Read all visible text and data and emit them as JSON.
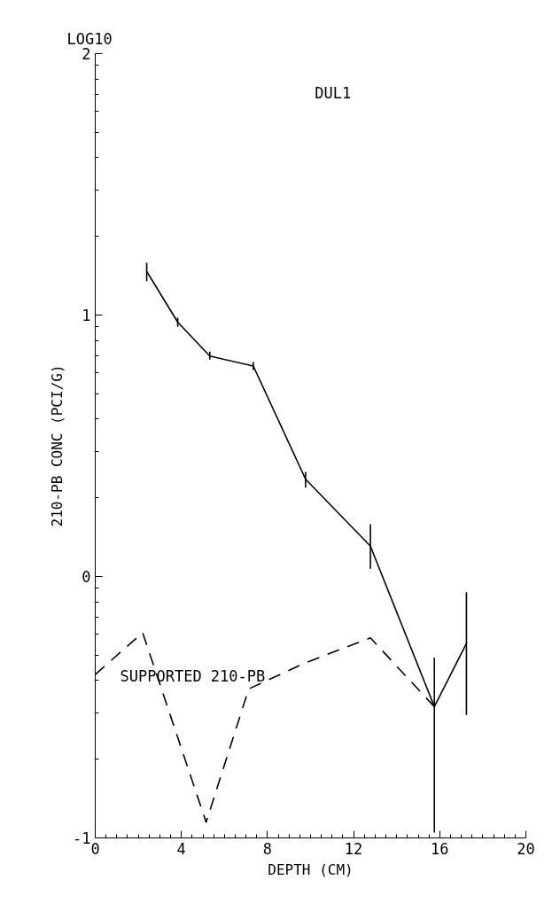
{
  "chart_data": {
    "type": "line",
    "title": "DUL1",
    "xlabel": "DEPTH (CM)",
    "ylabel": "210-PB CONC (PCI/G)",
    "annotations": [
      "LOG10",
      "SUPPORTED 210-PB"
    ],
    "xlim": [
      0,
      20
    ],
    "xticks": [
      0,
      4,
      8,
      12,
      16,
      20
    ],
    "ylim": [
      -1,
      2
    ],
    "yticks": [
      -1,
      0,
      1,
      2
    ],
    "grid": false,
    "marker": "none",
    "series": [
      {
        "color": "#000000",
        "line_style": "solid",
        "x": [
          2.39,
          3.83,
          5.32,
          7.34,
          9.77,
          12.78,
          15.75,
          17.24
        ],
        "values": [
          1.167,
          0.973,
          0.843,
          0.805,
          0.372,
          0.116,
          -0.498,
          -0.256
        ],
        "errors": [
          [
            1.13,
            1.2
          ],
          [
            0.955,
            0.99
          ],
          [
            0.83,
            0.86
          ],
          [
            0.79,
            0.82
          ],
          [
            0.34,
            0.4
          ],
          [
            0.03,
            0.2
          ],
          [
            -0.98,
            -0.31
          ],
          [
            -0.53,
            -0.06
          ]
        ]
      },
      {
        "color": "#000000",
        "line_style": "dashed",
        "x": [
          0,
          2.2,
          5.15,
          7.13,
          9.77,
          12.78,
          15.75
        ],
        "values": [
          -0.375,
          -0.215,
          -0.94,
          -0.43,
          -0.33,
          -0.235,
          -0.498
        ]
      }
    ]
  }
}
